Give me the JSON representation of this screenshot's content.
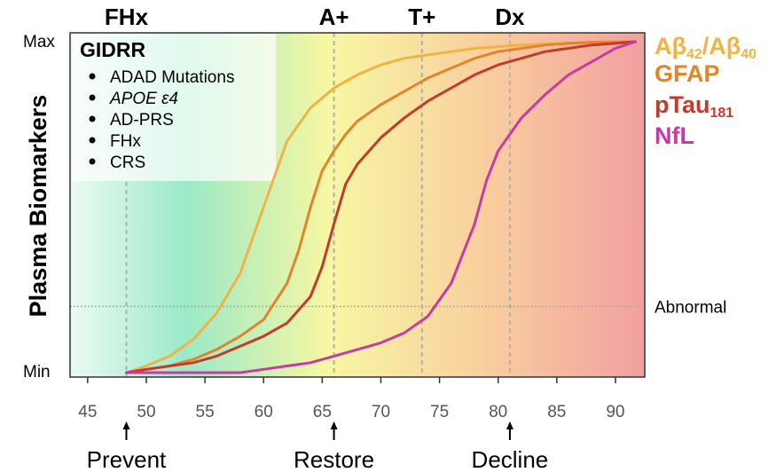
{
  "chart_data": {
    "type": "line",
    "ylabel": "Plasma Biomarkers",
    "y_tick_labels": [
      "Max",
      "Min"
    ],
    "abnormal_label": "Abnormal",
    "abnormal_level": 0.2,
    "xlim": [
      43.5,
      92.5
    ],
    "x_ticks": [
      45,
      50,
      55,
      60,
      65,
      70,
      75,
      80,
      85,
      90
    ],
    "stages": [
      {
        "label": "FHx",
        "x": 48.3
      },
      {
        "label": "A+",
        "x": 66
      },
      {
        "label": "T+",
        "x": 73.5
      },
      {
        "label": "Dx",
        "x": 81
      }
    ],
    "interventions": [
      {
        "label": "Prevent",
        "x": 48.3
      },
      {
        "label": "Restore",
        "x": 66
      },
      {
        "label": "Decline",
        "x": 81
      }
    ],
    "background_gradient": [
      "#ecfaf3",
      "#9be9c8",
      "#f7f7a3",
      "#f9cf9e",
      "#f1a0a0"
    ],
    "legend_box": {
      "title": "GIDRR",
      "items": [
        "ADAD Mutations",
        "APOE ε4",
        "AD-PRS",
        "FHx",
        "CRS"
      ]
    },
    "series": [
      {
        "name": "Aβ42/Aβ40",
        "color": "#f0b445",
        "x": [
          48.3,
          50,
          52,
          54,
          56,
          58,
          60,
          62,
          64,
          66,
          68,
          70,
          72,
          74,
          76,
          78,
          80,
          82,
          84,
          86,
          88,
          90,
          91.7
        ],
        "y": [
          0.0,
          0.02,
          0.05,
          0.1,
          0.18,
          0.3,
          0.5,
          0.7,
          0.8,
          0.86,
          0.9,
          0.93,
          0.95,
          0.96,
          0.97,
          0.98,
          0.985,
          0.99,
          0.993,
          0.996,
          0.998,
          0.999,
          1.0
        ]
      },
      {
        "name": "GFAP",
        "color": "#e0852a",
        "x": [
          48.3,
          50,
          52,
          54,
          56,
          58,
          60,
          62,
          63,
          64,
          65,
          66,
          67,
          68,
          70,
          72,
          74,
          76,
          78,
          80,
          82,
          84,
          86,
          88,
          90,
          91.7
        ],
        "y": [
          0.0,
          0.01,
          0.02,
          0.04,
          0.07,
          0.11,
          0.16,
          0.27,
          0.37,
          0.5,
          0.61,
          0.67,
          0.72,
          0.76,
          0.81,
          0.85,
          0.89,
          0.92,
          0.95,
          0.97,
          0.98,
          0.99,
          0.995,
          0.998,
          0.999,
          1.0
        ]
      },
      {
        "name": "pTau181",
        "color": "#c23b2c",
        "x": [
          48.3,
          50,
          52,
          54,
          56,
          58,
          60,
          62,
          64,
          65,
          66,
          67,
          68,
          70,
          72,
          74,
          76,
          78,
          80,
          82,
          84,
          86,
          88,
          90,
          91.7
        ],
        "y": [
          0.0,
          0.01,
          0.02,
          0.03,
          0.05,
          0.08,
          0.11,
          0.15,
          0.23,
          0.32,
          0.45,
          0.57,
          0.63,
          0.71,
          0.77,
          0.82,
          0.86,
          0.9,
          0.93,
          0.95,
          0.97,
          0.98,
          0.99,
          0.995,
          1.0
        ]
      },
      {
        "name": "NfL",
        "color": "#c83aa5",
        "x": [
          48.3,
          50,
          52,
          54,
          56,
          58,
          60,
          62,
          64,
          66,
          68,
          70,
          72,
          74,
          76,
          78,
          79,
          80,
          81,
          82,
          84,
          86,
          88,
          90,
          91.7
        ],
        "y": [
          0.0,
          0.0,
          0.0,
          0.0,
          0.0,
          0.0,
          0.01,
          0.02,
          0.03,
          0.05,
          0.07,
          0.09,
          0.12,
          0.17,
          0.27,
          0.45,
          0.58,
          0.67,
          0.72,
          0.77,
          0.84,
          0.9,
          0.94,
          0.98,
          1.0
        ]
      }
    ]
  }
}
